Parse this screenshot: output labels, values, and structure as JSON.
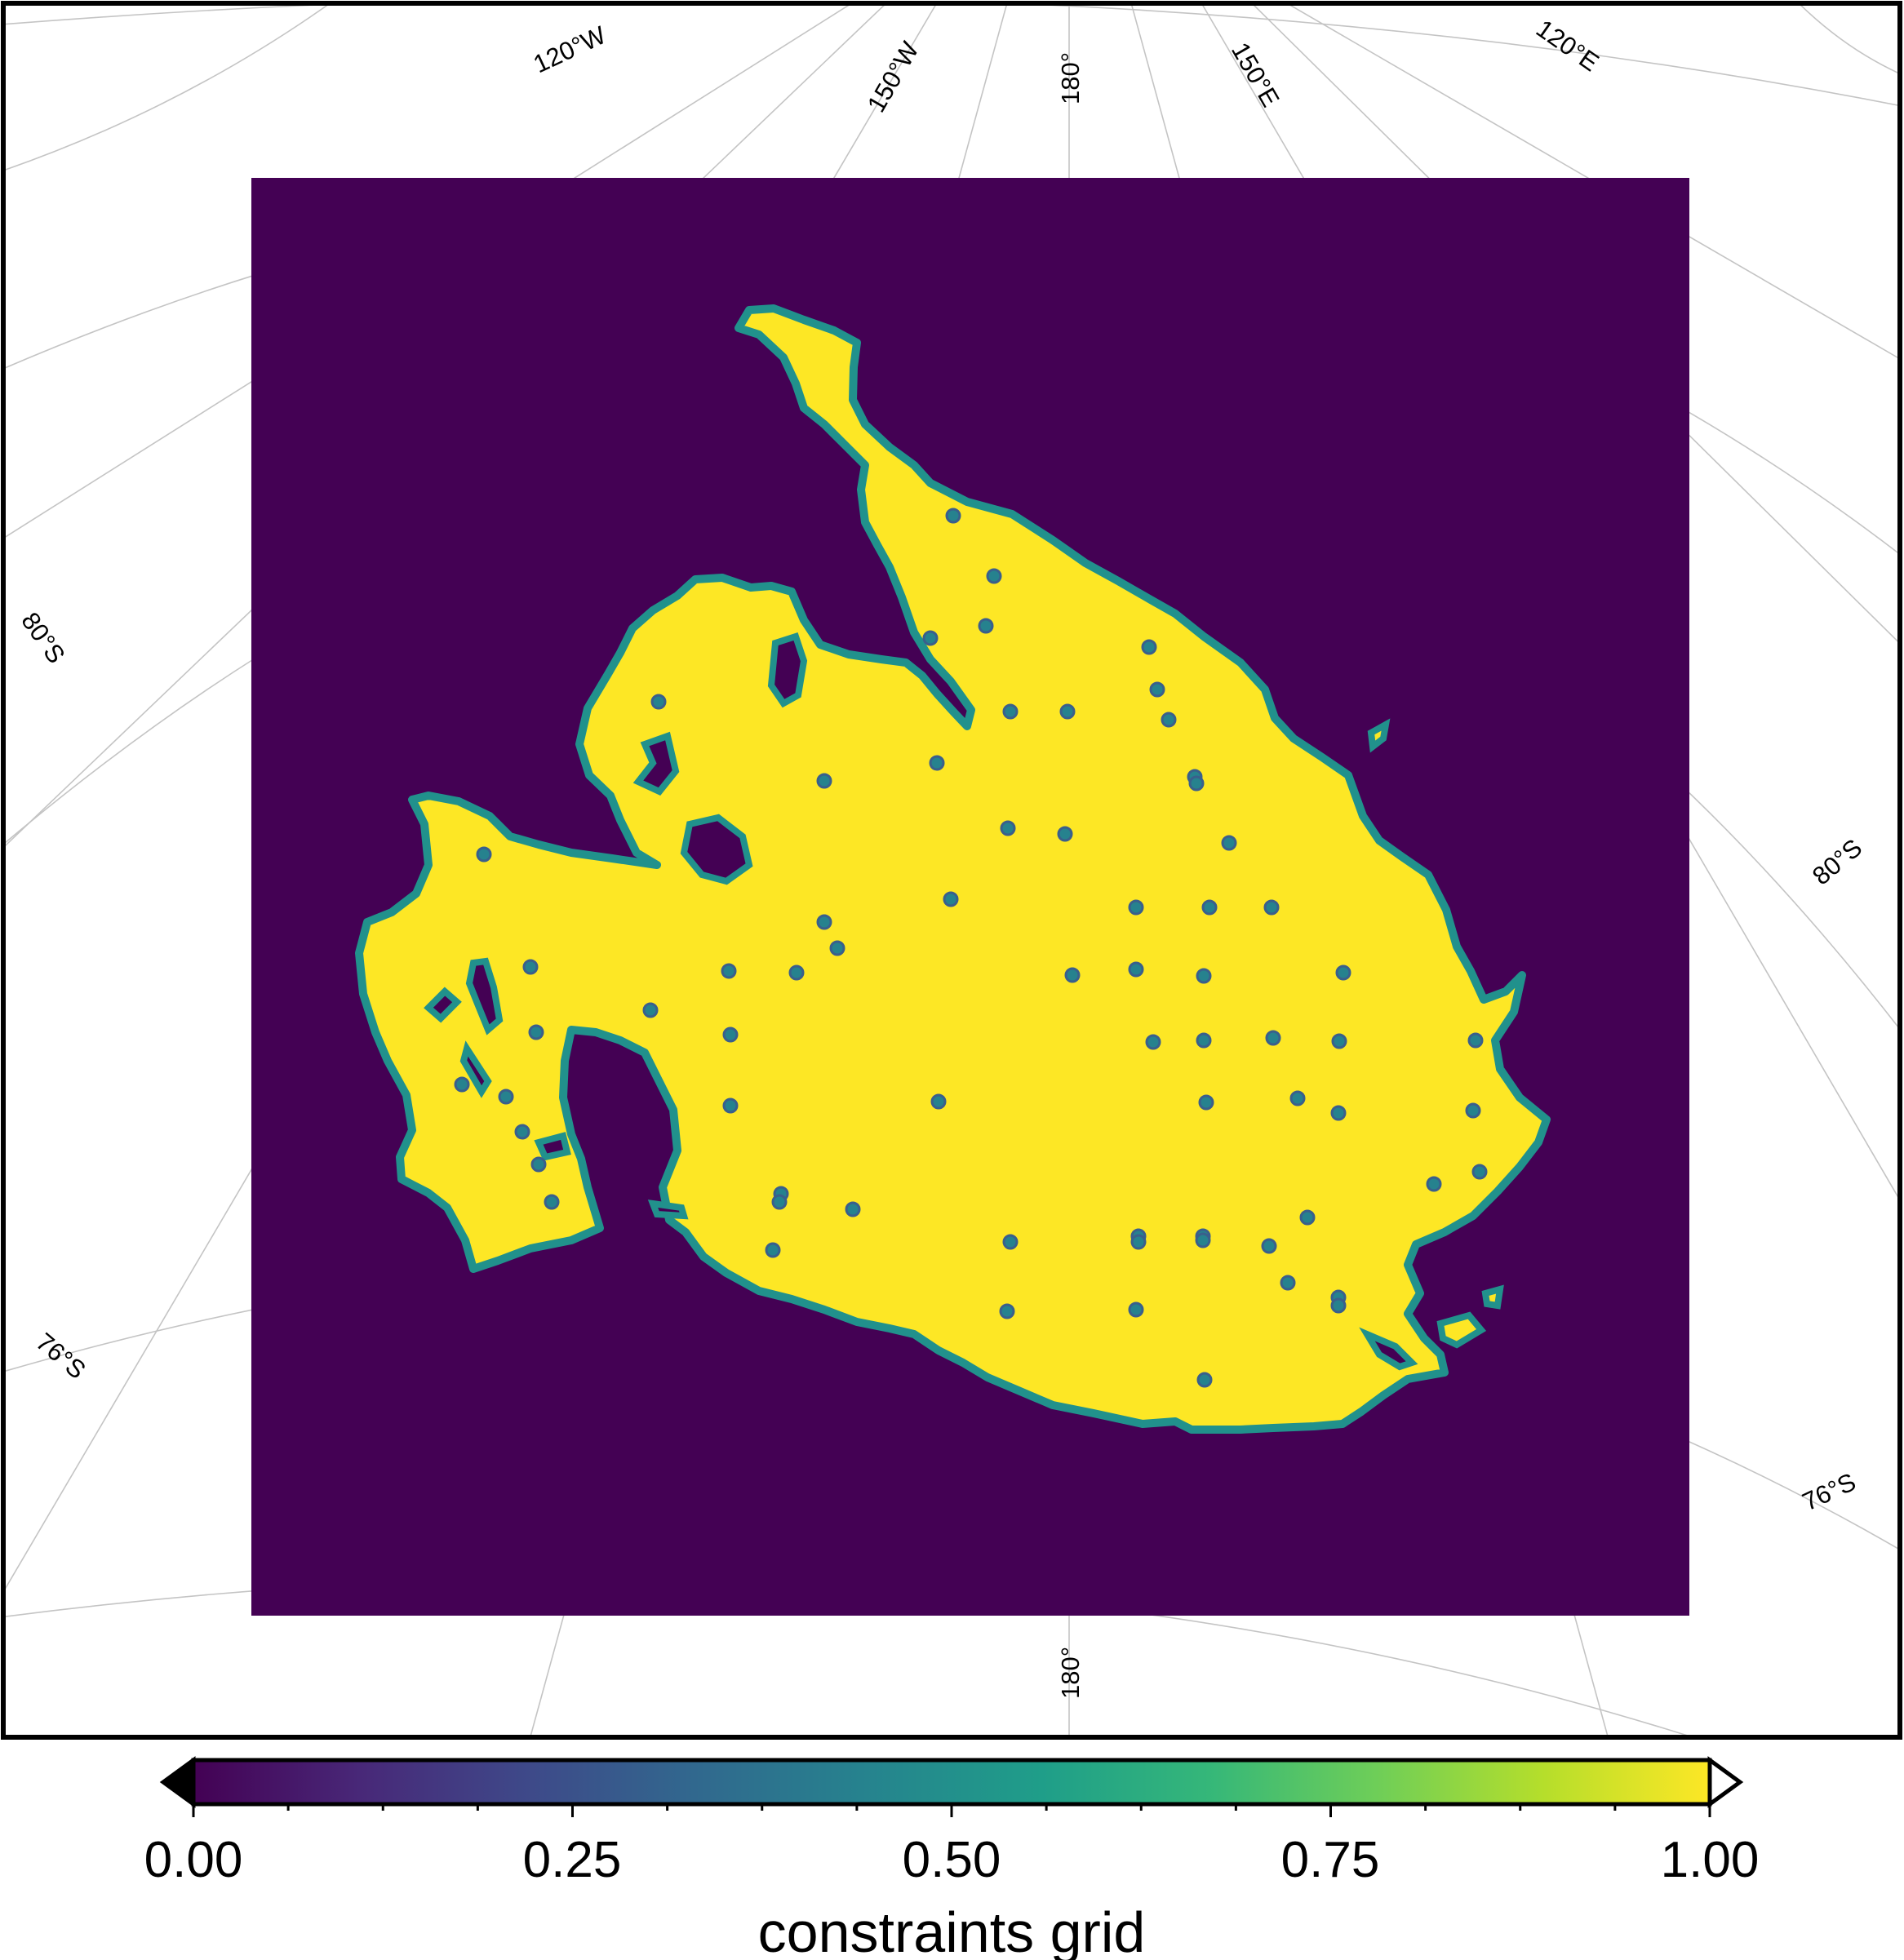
{
  "map": {
    "graticule_labels": {
      "top": [
        "120°W",
        "150°W",
        "180°",
        "150°E",
        "120°E"
      ],
      "bottom": [
        "180°"
      ],
      "left": [
        "80°S",
        "76°S"
      ],
      "right": [
        "80°S",
        "76°S"
      ]
    },
    "grid_colors": {
      "outside": "#440154",
      "inside": "#fde725",
      "edge": "#21918c"
    }
  },
  "colorbar": {
    "title": "constraints grid",
    "range": [
      0,
      1
    ],
    "tick_labels": [
      "0.00",
      "0.25",
      "0.50",
      "0.75",
      "1.00"
    ],
    "colormap": "viridis",
    "stops": [
      "#440154",
      "#482878",
      "#3e4989",
      "#31688e",
      "#26828e",
      "#1f9e89",
      "#35b779",
      "#6ece58",
      "#b5de2b",
      "#fde725"
    ],
    "below_color": "#000000",
    "above_color": "#ffffff"
  }
}
